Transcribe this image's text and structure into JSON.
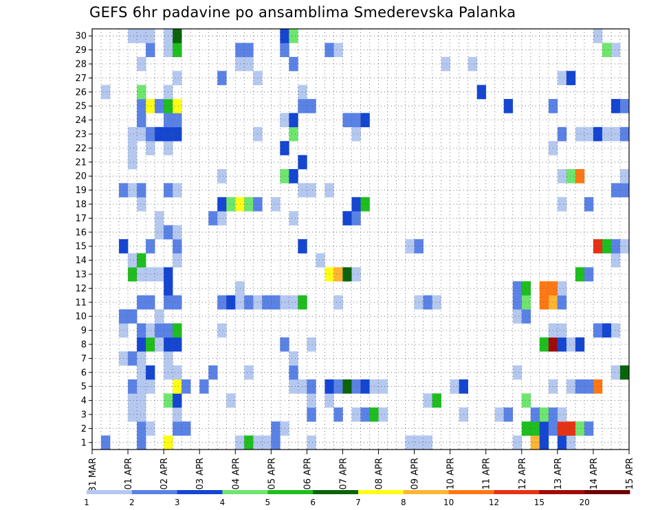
{
  "chart_data": {
    "type": "heatmap",
    "title": "GEFS 6hr padavine po ansamblima Smederevska Palanka",
    "x_tick_labels": [
      "31 MAR",
      "01 APR",
      "02 APR",
      "03 APR",
      "04 APR",
      "05 APR",
      "06 APR",
      "07 APR",
      "08 APR",
      "09 APR",
      "10 APR",
      "11 APR",
      "12 APR",
      "13 APR",
      "14 APR",
      "15 APR"
    ],
    "y_tick_labels": [
      "1",
      "2",
      "3",
      "4",
      "5",
      "6",
      "7",
      "8",
      "9",
      "10",
      "11",
      "12",
      "13",
      "14",
      "15",
      "16",
      "17",
      "18",
      "19",
      "20",
      "21",
      "22",
      "23",
      "24",
      "25",
      "26",
      "27",
      "28",
      "29",
      "30"
    ],
    "x_range_steps": [
      0,
      60
    ],
    "steps_per_day": 4,
    "members": 30,
    "grid": true,
    "legend": {
      "position": "bottom",
      "labels": [
        "1",
        "2",
        "3",
        "4",
        "5",
        "6",
        "7",
        "8",
        "10",
        "12",
        "15",
        "20"
      ],
      "colors": [
        "#b4c8f0",
        "#5a82e6",
        "#1446d2",
        "#6ee66e",
        "#1ebe1e",
        "#0a640a",
        "#ffff14",
        "#ffb432",
        "#ff7814",
        "#e63214",
        "#a00a0a",
        "#6e0000"
      ]
    },
    "cells": [
      [
        1,
        2,
        2
      ],
      [
        1,
        6,
        2
      ],
      [
        1,
        9,
        7
      ],
      [
        1,
        17,
        1
      ],
      [
        1,
        18,
        5
      ],
      [
        1,
        19,
        1
      ],
      [
        1,
        20,
        1
      ],
      [
        1,
        21,
        2
      ],
      [
        1,
        25,
        1
      ],
      [
        1,
        36,
        1
      ],
      [
        1,
        37,
        1
      ],
      [
        1,
        38,
        1
      ],
      [
        1,
        48,
        1
      ],
      [
        1,
        50,
        8
      ],
      [
        1,
        51,
        3
      ],
      [
        1,
        53,
        3
      ],
      [
        1,
        54,
        1
      ],
      [
        2,
        6,
        2
      ],
      [
        2,
        7,
        1
      ],
      [
        2,
        10,
        2
      ],
      [
        2,
        11,
        2
      ],
      [
        2,
        21,
        2
      ],
      [
        2,
        22,
        1
      ],
      [
        2,
        49,
        5
      ],
      [
        2,
        50,
        5
      ],
      [
        2,
        51,
        3
      ],
      [
        2,
        52,
        2
      ],
      [
        2,
        53,
        10
      ],
      [
        2,
        54,
        10
      ],
      [
        2,
        55,
        4
      ],
      [
        2,
        56,
        2
      ],
      [
        3,
        5,
        1
      ],
      [
        3,
        6,
        1
      ],
      [
        3,
        10,
        1
      ],
      [
        3,
        25,
        2
      ],
      [
        3,
        28,
        2
      ],
      [
        3,
        30,
        1
      ],
      [
        3,
        31,
        2
      ],
      [
        3,
        32,
        5
      ],
      [
        3,
        33,
        1
      ],
      [
        3,
        42,
        1
      ],
      [
        3,
        46,
        1
      ],
      [
        3,
        47,
        2
      ],
      [
        3,
        50,
        2
      ],
      [
        3,
        51,
        4
      ],
      [
        3,
        52,
        2
      ],
      [
        3,
        53,
        1
      ],
      [
        4,
        5,
        1
      ],
      [
        4,
        6,
        1
      ],
      [
        4,
        9,
        4
      ],
      [
        4,
        10,
        3
      ],
      [
        4,
        16,
        1
      ],
      [
        4,
        25,
        1
      ],
      [
        4,
        27,
        1
      ],
      [
        4,
        38,
        1
      ],
      [
        4,
        39,
        5
      ],
      [
        4,
        49,
        4
      ],
      [
        5,
        5,
        2
      ],
      [
        5,
        6,
        1
      ],
      [
        5,
        7,
        1
      ],
      [
        5,
        10,
        7
      ],
      [
        5,
        11,
        2
      ],
      [
        5,
        13,
        2
      ],
      [
        5,
        23,
        1
      ],
      [
        5,
        24,
        1
      ],
      [
        5,
        25,
        2
      ],
      [
        5,
        27,
        3
      ],
      [
        5,
        28,
        2
      ],
      [
        5,
        29,
        6
      ],
      [
        5,
        30,
        2
      ],
      [
        5,
        31,
        3
      ],
      [
        5,
        32,
        1
      ],
      [
        5,
        33,
        1
      ],
      [
        5,
        41,
        1
      ],
      [
        5,
        42,
        3
      ],
      [
        5,
        52,
        1
      ],
      [
        5,
        54,
        1
      ],
      [
        5,
        55,
        2
      ],
      [
        5,
        56,
        2
      ],
      [
        5,
        57,
        9
      ],
      [
        6,
        6,
        1
      ],
      [
        6,
        7,
        3
      ],
      [
        6,
        9,
        1
      ],
      [
        6,
        10,
        1
      ],
      [
        6,
        14,
        2
      ],
      [
        6,
        18,
        1
      ],
      [
        6,
        23,
        2
      ],
      [
        6,
        48,
        1
      ],
      [
        6,
        59,
        1
      ],
      [
        6,
        60,
        6
      ],
      [
        7,
        4,
        1
      ],
      [
        7,
        5,
        2
      ],
      [
        7,
        6,
        1
      ],
      [
        7,
        9,
        1
      ],
      [
        7,
        23,
        1
      ],
      [
        8,
        6,
        3
      ],
      [
        8,
        7,
        5
      ],
      [
        8,
        8,
        1
      ],
      [
        8,
        9,
        3
      ],
      [
        8,
        10,
        3
      ],
      [
        8,
        22,
        2
      ],
      [
        8,
        25,
        1
      ],
      [
        8,
        51,
        5
      ],
      [
        8,
        52,
        11
      ],
      [
        8,
        53,
        3
      ],
      [
        8,
        54,
        1
      ],
      [
        8,
        55,
        3
      ],
      [
        9,
        4,
        1
      ],
      [
        9,
        6,
        2
      ],
      [
        9,
        7,
        1
      ],
      [
        9,
        8,
        2
      ],
      [
        9,
        9,
        2
      ],
      [
        9,
        10,
        5
      ],
      [
        9,
        15,
        1
      ],
      [
        9,
        52,
        1
      ],
      [
        9,
        53,
        1
      ],
      [
        9,
        57,
        2
      ],
      [
        9,
        58,
        3
      ],
      [
        9,
        59,
        1
      ],
      [
        10,
        4,
        2
      ],
      [
        10,
        5,
        2
      ],
      [
        10,
        8,
        1
      ],
      [
        10,
        48,
        1
      ],
      [
        10,
        49,
        2
      ],
      [
        11,
        6,
        2
      ],
      [
        11,
        7,
        2
      ],
      [
        11,
        9,
        2
      ],
      [
        11,
        10,
        2
      ],
      [
        11,
        15,
        2
      ],
      [
        11,
        16,
        3
      ],
      [
        11,
        17,
        1
      ],
      [
        11,
        18,
        2
      ],
      [
        11,
        19,
        1
      ],
      [
        11,
        20,
        2
      ],
      [
        11,
        21,
        2
      ],
      [
        11,
        22,
        1
      ],
      [
        11,
        23,
        1
      ],
      [
        11,
        24,
        5
      ],
      [
        11,
        28,
        1
      ],
      [
        11,
        37,
        1
      ],
      [
        11,
        38,
        2
      ],
      [
        11,
        39,
        1
      ],
      [
        11,
        48,
        2
      ],
      [
        11,
        49,
        4
      ],
      [
        11,
        51,
        9
      ],
      [
        11,
        52,
        8
      ],
      [
        11,
        53,
        2
      ],
      [
        12,
        9,
        3
      ],
      [
        12,
        17,
        1
      ],
      [
        12,
        48,
        2
      ],
      [
        12,
        49,
        5
      ],
      [
        12,
        51,
        9
      ],
      [
        12,
        52,
        9
      ],
      [
        12,
        53,
        1
      ],
      [
        13,
        5,
        5
      ],
      [
        13,
        6,
        1
      ],
      [
        13,
        7,
        1
      ],
      [
        13,
        8,
        1
      ],
      [
        13,
        9,
        3
      ],
      [
        13,
        27,
        7
      ],
      [
        13,
        28,
        8
      ],
      [
        13,
        29,
        6
      ],
      [
        13,
        30,
        1
      ],
      [
        13,
        55,
        5
      ],
      [
        13,
        56,
        2
      ],
      [
        14,
        5,
        1
      ],
      [
        14,
        6,
        5
      ],
      [
        14,
        10,
        1
      ],
      [
        14,
        26,
        1
      ],
      [
        14,
        59,
        1
      ],
      [
        15,
        4,
        3
      ],
      [
        15,
        7,
        2
      ],
      [
        15,
        10,
        2
      ],
      [
        15,
        24,
        3
      ],
      [
        15,
        36,
        1
      ],
      [
        15,
        37,
        2
      ],
      [
        15,
        57,
        10
      ],
      [
        15,
        58,
        5
      ],
      [
        15,
        59,
        2
      ],
      [
        15,
        60,
        1
      ],
      [
        16,
        8,
        1
      ],
      [
        16,
        9,
        2
      ],
      [
        16,
        10,
        1
      ],
      [
        17,
        8,
        1
      ],
      [
        17,
        14,
        2
      ],
      [
        17,
        15,
        1
      ],
      [
        17,
        23,
        1
      ],
      [
        17,
        29,
        3
      ],
      [
        17,
        30,
        2
      ],
      [
        18,
        6,
        1
      ],
      [
        18,
        15,
        3
      ],
      [
        18,
        16,
        4
      ],
      [
        18,
        17,
        7
      ],
      [
        18,
        18,
        4
      ],
      [
        18,
        19,
        2
      ],
      [
        18,
        21,
        1
      ],
      [
        18,
        30,
        3
      ],
      [
        18,
        31,
        5
      ],
      [
        18,
        53,
        1
      ],
      [
        18,
        56,
        2
      ],
      [
        19,
        4,
        2
      ],
      [
        19,
        5,
        1
      ],
      [
        19,
        6,
        2
      ],
      [
        19,
        9,
        2
      ],
      [
        19,
        10,
        1
      ],
      [
        19,
        24,
        1
      ],
      [
        19,
        25,
        1
      ],
      [
        19,
        27,
        1
      ],
      [
        19,
        59,
        2
      ],
      [
        19,
        60,
        2
      ],
      [
        20,
        15,
        1
      ],
      [
        20,
        22,
        4
      ],
      [
        20,
        23,
        3
      ],
      [
        20,
        53,
        1
      ],
      [
        20,
        54,
        4
      ],
      [
        20,
        55,
        9
      ],
      [
        20,
        60,
        1
      ],
      [
        21,
        5,
        1
      ],
      [
        21,
        24,
        3
      ],
      [
        22,
        5,
        1
      ],
      [
        22,
        7,
        1
      ],
      [
        22,
        9,
        1
      ],
      [
        22,
        22,
        3
      ],
      [
        22,
        52,
        1
      ],
      [
        23,
        5,
        1
      ],
      [
        23,
        6,
        1
      ],
      [
        23,
        7,
        2
      ],
      [
        23,
        8,
        3
      ],
      [
        23,
        9,
        3
      ],
      [
        23,
        10,
        3
      ],
      [
        23,
        19,
        1
      ],
      [
        23,
        23,
        4
      ],
      [
        23,
        30,
        1
      ],
      [
        23,
        53,
        2
      ],
      [
        23,
        55,
        1
      ],
      [
        23,
        56,
        1
      ],
      [
        23,
        57,
        3
      ],
      [
        23,
        58,
        1
      ],
      [
        23,
        59,
        1
      ],
      [
        23,
        60,
        2
      ],
      [
        24,
        6,
        2
      ],
      [
        24,
        9,
        2
      ],
      [
        24,
        10,
        2
      ],
      [
        24,
        22,
        1
      ],
      [
        24,
        23,
        3
      ],
      [
        24,
        29,
        2
      ],
      [
        24,
        30,
        2
      ],
      [
        24,
        31,
        3
      ],
      [
        25,
        6,
        2
      ],
      [
        25,
        7,
        7
      ],
      [
        25,
        8,
        2
      ],
      [
        25,
        9,
        5
      ],
      [
        25,
        10,
        7
      ],
      [
        25,
        24,
        2
      ],
      [
        25,
        25,
        2
      ],
      [
        25,
        47,
        3
      ],
      [
        25,
        52,
        2
      ],
      [
        25,
        59,
        3
      ],
      [
        25,
        60,
        2
      ],
      [
        26,
        2,
        1
      ],
      [
        26,
        6,
        4
      ],
      [
        26,
        9,
        1
      ],
      [
        26,
        24,
        1
      ],
      [
        26,
        44,
        3
      ],
      [
        27,
        10,
        1
      ],
      [
        27,
        15,
        2
      ],
      [
        27,
        19,
        1
      ],
      [
        27,
        53,
        1
      ],
      [
        27,
        54,
        3
      ],
      [
        28,
        6,
        1
      ],
      [
        28,
        17,
        1
      ],
      [
        28,
        18,
        1
      ],
      [
        28,
        23,
        2
      ],
      [
        28,
        40,
        1
      ],
      [
        28,
        43,
        1
      ],
      [
        29,
        7,
        2
      ],
      [
        29,
        9,
        1
      ],
      [
        29,
        10,
        5
      ],
      [
        29,
        17,
        2
      ],
      [
        29,
        18,
        2
      ],
      [
        29,
        22,
        2
      ],
      [
        29,
        27,
        2
      ],
      [
        29,
        28,
        1
      ],
      [
        29,
        58,
        4
      ],
      [
        29,
        59,
        1
      ],
      [
        30,
        5,
        1
      ],
      [
        30,
        6,
        1
      ],
      [
        30,
        7,
        1
      ],
      [
        30,
        9,
        1
      ],
      [
        30,
        10,
        6
      ],
      [
        30,
        22,
        3
      ],
      [
        30,
        23,
        4
      ],
      [
        30,
        57,
        1
      ]
    ]
  }
}
